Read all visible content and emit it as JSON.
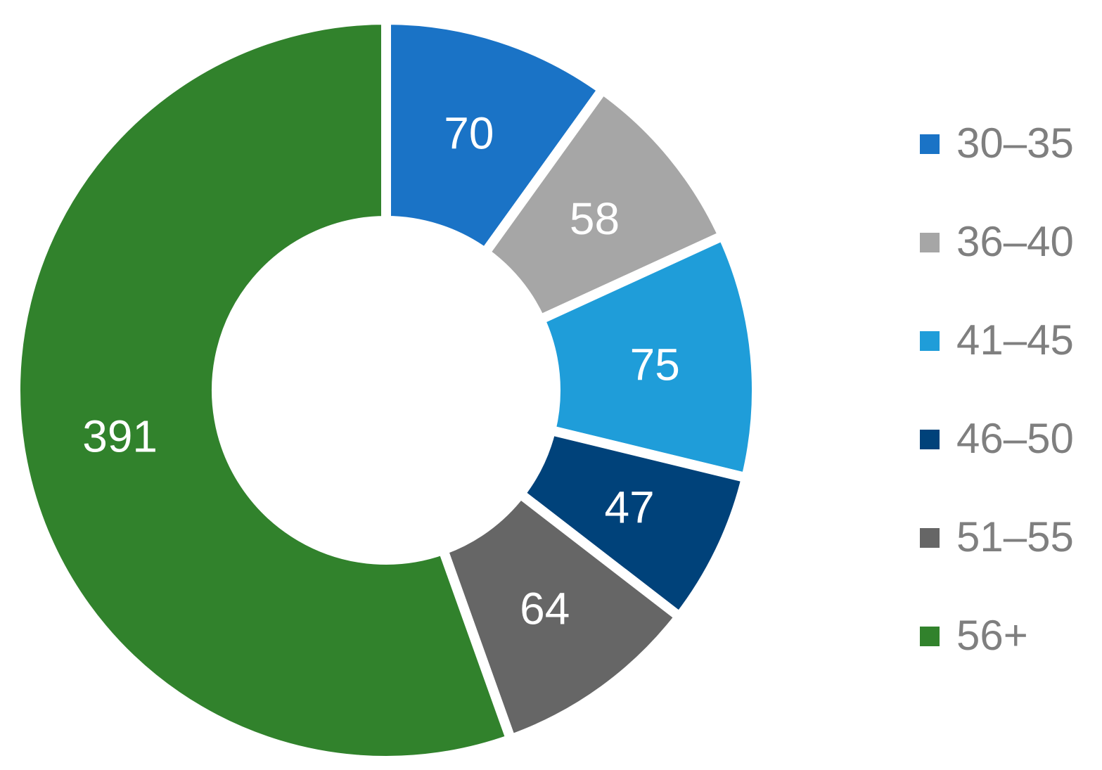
{
  "chart_data": {
    "type": "pie",
    "subtype": "donut",
    "categories": [
      "30–35",
      "36–40",
      "41–45",
      "46–50",
      "51–55",
      "56+"
    ],
    "values": [
      70,
      58,
      75,
      47,
      64,
      391
    ],
    "colors": [
      "#1a73c6",
      "#a6a6a6",
      "#1f9dd9",
      "#00427a",
      "#666666",
      "#31822c"
    ],
    "data_labels": [
      "70",
      "58",
      "75",
      "47",
      "64",
      "391"
    ],
    "title": "",
    "legend_position": "right"
  }
}
